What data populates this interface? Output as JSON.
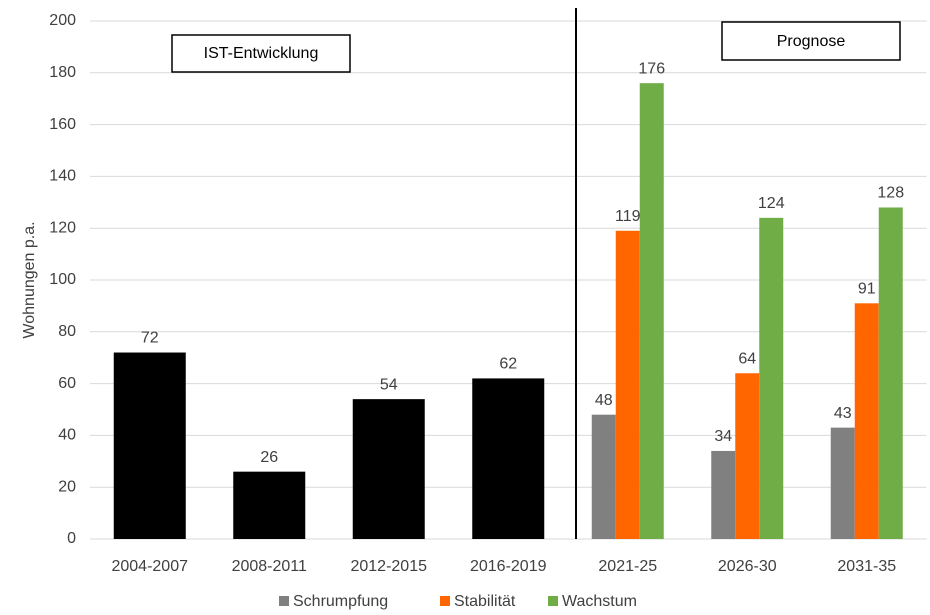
{
  "chart_data": {
    "type": "bar",
    "y_label": "Wohnungen p.a.",
    "annotations": [
      "IST-Entwicklung",
      "Prognose"
    ],
    "categories": [
      "2004-2007",
      "2008-2011",
      "2012-2015",
      "2016-2019",
      "2021-25",
      "2026-30",
      "2031-35"
    ],
    "values": [
      72,
      26,
      54,
      62,
      null,
      null,
      null
    ],
    "color": "#000000",
    "series": [
      {
        "name": "Schrumpfung",
        "color": "#808080",
        "values": [
          null,
          null,
          null,
          null,
          48,
          34,
          43
        ]
      },
      {
        "name": "Stabilität",
        "color": "#ff6600",
        "values": [
          null,
          null,
          null,
          null,
          119,
          64,
          91
        ]
      },
      {
        "name": "Wachstum",
        "color": "#70ad47",
        "values": [
          null,
          null,
          null,
          null,
          176,
          124,
          128
        ]
      }
    ],
    "ylim": [
      0,
      200
    ],
    "yticks": [
      0,
      20,
      40,
      60,
      80,
      100,
      120,
      140,
      160,
      180,
      200
    ],
    "grid": true
  }
}
